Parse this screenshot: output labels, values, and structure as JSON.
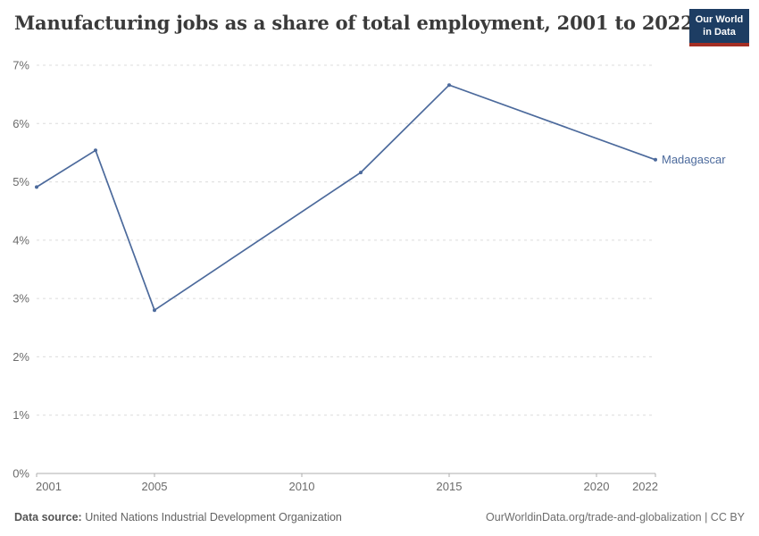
{
  "header": {
    "title": "Manufacturing jobs as a share of total employment, 2001 to 2022",
    "logo": {
      "line1": "Our World",
      "line2": "in Data"
    }
  },
  "chart_data": {
    "type": "line",
    "title": "Manufacturing jobs as a share of total employment, 2001 to 2022",
    "xlabel": "",
    "ylabel": "",
    "grid": "horizontal-dashed",
    "legend_position": "end-of-line",
    "x_axis": {
      "range": [
        2001,
        2022
      ],
      "ticks": [
        2001,
        2005,
        2010,
        2015,
        2020,
        2022
      ]
    },
    "y_axis": {
      "range": [
        0,
        7
      ],
      "tick_values": [
        0,
        1,
        2,
        3,
        4,
        5,
        6,
        7
      ],
      "tick_labels": [
        "0%",
        "1%",
        "2%",
        "3%",
        "4%",
        "5%",
        "6%",
        "7%"
      ]
    },
    "series": [
      {
        "name": "Madagascar",
        "color": "#4C6A9C",
        "points": [
          {
            "x": 2001,
            "y": 4.91
          },
          {
            "x": 2003,
            "y": 5.54
          },
          {
            "x": 2005,
            "y": 2.8
          },
          {
            "x": 2012,
            "y": 5.16
          },
          {
            "x": 2015,
            "y": 6.66
          },
          {
            "x": 2022,
            "y": 5.38
          }
        ]
      }
    ]
  },
  "footer": {
    "source_label": "Data source:",
    "source_value": "United Nations Industrial Development Organization",
    "attribution": "OurWorldinData.org/trade-and-globalization | CC BY"
  },
  "colors": {
    "line": "#4C6A9C",
    "gridline": "#dcdcdc",
    "axis": "#adadad",
    "tick_text": "#6b6b6b",
    "logo_bg": "#1d3d63",
    "logo_accent": "#a42e24"
  }
}
